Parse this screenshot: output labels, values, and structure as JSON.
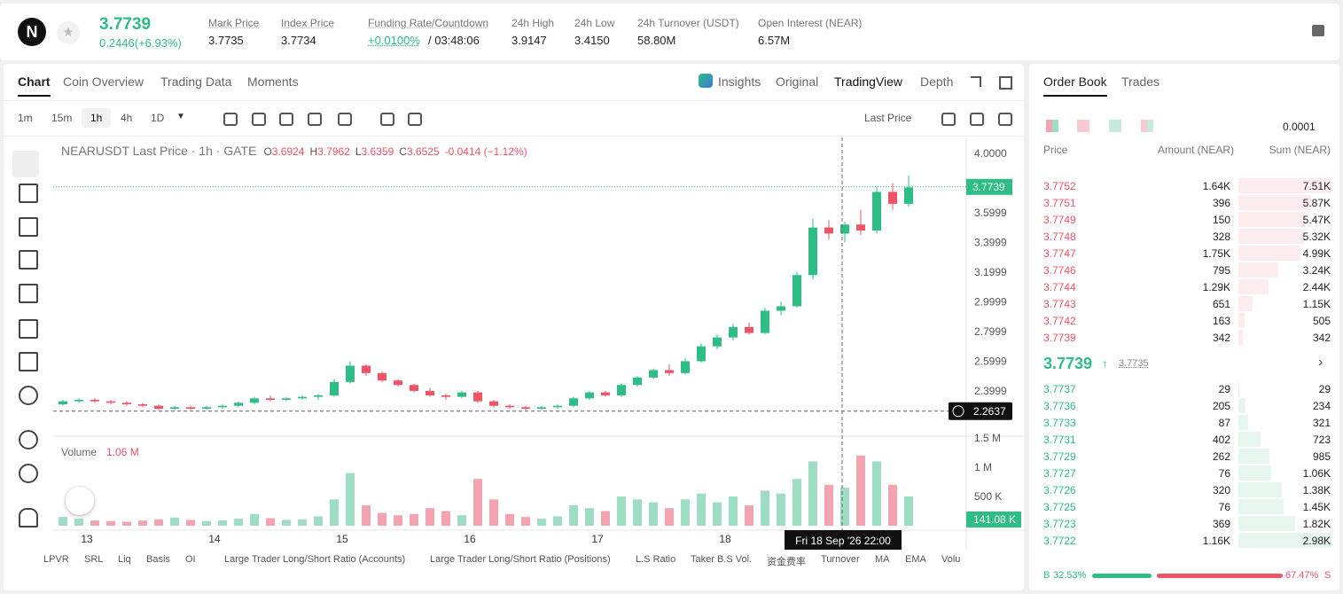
{
  "header": {
    "symbol_price": "3.7739",
    "change": "0.2446(+6.93%)",
    "stats": [
      {
        "label": "Mark Price",
        "value": "3.7735"
      },
      {
        "label": "Index Price",
        "value": "3.7734"
      },
      {
        "label": "Funding Rate/Countdown",
        "value": "+0.0100%",
        "extra": "/ 03:48:06"
      },
      {
        "label": "24h High",
        "value": "3.9147"
      },
      {
        "label": "24h Low",
        "value": "3.4150"
      },
      {
        "label": "24h Turnover (USDT)",
        "value": "58.80M"
      },
      {
        "label": "Open Interest (NEAR)",
        "value": "6.57M"
      }
    ]
  },
  "tabs": [
    "Chart",
    "Coin Overview",
    "Trading Data",
    "Moments"
  ],
  "view_tabs": [
    "Insights",
    "Original",
    "TradingView",
    "Depth"
  ],
  "intervals": [
    "1m",
    "15m",
    "1h",
    "4h",
    "1D"
  ],
  "price_type": "Last Price",
  "chart": {
    "type": "candlestick",
    "legend": {
      "title": "NEARUSDT Last Price · 1h · GATE",
      "o": "O",
      "o_value": "3.6924",
      "h": "H",
      "h_value": "3.7962",
      "l": "L",
      "l_value": "3.6359",
      "c": "C",
      "c_value": "3.6525",
      "change": "-0.0414 (−1.12%)"
    },
    "volume_label": "Volume",
    "volume_value": "1.06 M",
    "ylim": [
      2.107,
      4.107
    ],
    "yticks": [
      {
        "value": 4,
        "label": "4.0000"
      },
      3.5999,
      3.3999,
      3.1999,
      2.9999,
      2.7999,
      2.5999,
      2.3999
    ],
    "vlim": [
      0,
      1560
    ],
    "vticks": [
      {
        "value": 500,
        "label": "500 K"
      },
      {
        "value": 1000,
        "label": "1 M"
      },
      {
        "value": 1500,
        "label": "1.5 M"
      }
    ],
    "xticks": [
      {
        "value": 2,
        "label": "13"
      },
      {
        "value": 10,
        "label": "14"
      },
      {
        "value": 18,
        "label": "15"
      },
      {
        "value": 26,
        "label": "16"
      },
      {
        "value": 34,
        "label": "17"
      },
      {
        "value": 42,
        "label": "18"
      }
    ],
    "last_price": {
      "value": 3.7739,
      "label": "3.7739"
    },
    "last_volume": "141.08 K",
    "crosshair_price": {
      "value": 2.2637,
      "label": "2.2637"
    },
    "crosshair_time": "Fri 18 Sep '26   22:00",
    "up_color": "#2ebd85",
    "down_color": "#ef5366",
    "vol_up_color": "#9edcc3",
    "vol_down_color": "#f2a5b0",
    "candles": [
      [
        2.31,
        2.34,
        2.3,
        2.33,
        150
      ],
      [
        2.33,
        2.35,
        2.32,
        2.34,
        120
      ],
      [
        2.34,
        2.35,
        2.32,
        2.33,
        90
      ],
      [
        2.33,
        2.34,
        2.31,
        2.32,
        80
      ],
      [
        2.32,
        2.33,
        2.3,
        2.31,
        70
      ],
      [
        2.31,
        2.32,
        2.29,
        2.3,
        90
      ],
      [
        2.3,
        2.31,
        2.27,
        2.28,
        110
      ],
      [
        2.28,
        2.3,
        2.27,
        2.29,
        140
      ],
      [
        2.29,
        2.3,
        2.27,
        2.28,
        100
      ],
      [
        2.28,
        2.3,
        2.27,
        2.29,
        80
      ],
      [
        2.29,
        2.31,
        2.28,
        2.3,
        90
      ],
      [
        2.3,
        2.33,
        2.29,
        2.32,
        120
      ],
      [
        2.32,
        2.36,
        2.31,
        2.35,
        200
      ],
      [
        2.35,
        2.37,
        2.33,
        2.34,
        130
      ],
      [
        2.34,
        2.36,
        2.33,
        2.35,
        100
      ],
      [
        2.35,
        2.37,
        2.34,
        2.36,
        110
      ],
      [
        2.36,
        2.38,
        2.34,
        2.37,
        160
      ],
      [
        2.37,
        2.48,
        2.36,
        2.46,
        450
      ],
      [
        2.46,
        2.6,
        2.45,
        2.57,
        900
      ],
      [
        2.57,
        2.58,
        2.5,
        2.52,
        350
      ],
      [
        2.52,
        2.53,
        2.46,
        2.47,
        220
      ],
      [
        2.47,
        2.48,
        2.43,
        2.44,
        180
      ],
      [
        2.44,
        2.45,
        2.39,
        2.4,
        200
      ],
      [
        2.4,
        2.42,
        2.36,
        2.37,
        300
      ],
      [
        2.37,
        2.38,
        2.34,
        2.36,
        250
      ],
      [
        2.36,
        2.4,
        2.35,
        2.39,
        180
      ],
      [
        2.39,
        2.4,
        2.32,
        2.33,
        800
      ],
      [
        2.33,
        2.34,
        2.29,
        2.3,
        450
      ],
      [
        2.3,
        2.31,
        2.28,
        2.29,
        200
      ],
      [
        2.29,
        2.3,
        2.27,
        2.28,
        150
      ],
      [
        2.28,
        2.3,
        2.27,
        2.29,
        120
      ],
      [
        2.29,
        2.31,
        2.28,
        2.3,
        160
      ],
      [
        2.3,
        2.36,
        2.29,
        2.35,
        350
      ],
      [
        2.35,
        2.4,
        2.34,
        2.39,
        300
      ],
      [
        2.39,
        2.4,
        2.36,
        2.37,
        250
      ],
      [
        2.37,
        2.45,
        2.36,
        2.44,
        500
      ],
      [
        2.44,
        2.5,
        2.43,
        2.49,
        450
      ],
      [
        2.49,
        2.55,
        2.48,
        2.54,
        400
      ],
      [
        2.54,
        2.58,
        2.5,
        2.52,
        300
      ],
      [
        2.52,
        2.62,
        2.51,
        2.6,
        450
      ],
      [
        2.6,
        2.72,
        2.59,
        2.7,
        550
      ],
      [
        2.7,
        2.78,
        2.68,
        2.76,
        400
      ],
      [
        2.76,
        2.85,
        2.74,
        2.83,
        500
      ],
      [
        2.83,
        2.86,
        2.78,
        2.79,
        350
      ],
      [
        2.79,
        2.96,
        2.78,
        2.94,
        600
      ],
      [
        2.94,
        3.0,
        2.91,
        2.97,
        550
      ],
      [
        2.97,
        3.2,
        2.96,
        3.18,
        800
      ],
      [
        3.18,
        3.56,
        3.15,
        3.5,
        1100
      ],
      [
        3.5,
        3.55,
        3.42,
        3.46,
        700
      ],
      [
        3.46,
        3.54,
        3.4,
        3.52,
        650
      ],
      [
        3.52,
        3.62,
        3.45,
        3.48,
        1200
      ],
      [
        3.48,
        3.78,
        3.46,
        3.74,
        1100
      ],
      [
        3.74,
        3.8,
        3.62,
        3.66,
        700
      ],
      [
        3.66,
        3.85,
        3.64,
        3.77,
        500
      ]
    ]
  },
  "indicators": [
    "LPVR",
    "SRL",
    "Liq",
    "Basis",
    "OI",
    "Large Trader Long/Short Ratio (Accounts)",
    "Large Trader Long/Short Ratio (Positions)",
    "L.S Ratio",
    "Taker B.S Vol.",
    "资金费率",
    "Turnover",
    "MA",
    "EMA",
    "Volu"
  ],
  "order_book": {
    "tabs": [
      "Order Book",
      "Trades"
    ],
    "precision": "0.0001",
    "columns": [
      "Price",
      "Amount (NEAR)",
      "Sum (NEAR)"
    ],
    "asks": [
      {
        "price": "3.7752",
        "amount": "1.64K",
        "sum": {
          "value": 7510,
          "label": "7.51K"
        }
      },
      {
        "price": "3.7751",
        "amount": "396",
        "sum": {
          "value": 5870,
          "label": "5.87K"
        }
      },
      {
        "price": "3.7749",
        "amount": "150",
        "sum": {
          "value": 5470,
          "label": "5.47K"
        }
      },
      {
        "price": "3.7748",
        "amount": "328",
        "sum": {
          "value": 5320,
          "label": "5.32K"
        }
      },
      {
        "price": "3.7747",
        "amount": "1.75K",
        "sum": {
          "value": 4990,
          "label": "4.99K"
        }
      },
      {
        "price": "3.7746",
        "amount": "795",
        "sum": {
          "value": 3240,
          "label": "3.24K"
        }
      },
      {
        "price": "3.7744",
        "amount": "1.29K",
        "sum": {
          "value": 2440,
          "label": "2.44K"
        }
      },
      {
        "price": "3.7743",
        "amount": "651",
        "sum": {
          "value": 1150,
          "label": "1.15K"
        }
      },
      {
        "price": "3.7742",
        "amount": "163",
        "sum": 505
      },
      {
        "price": "3.7739",
        "amount": "342",
        "sum": 342
      }
    ],
    "last": "3.7739",
    "mark": "3.7735",
    "bids": [
      {
        "price": "3.7737",
        "amount": "29",
        "sum": 29
      },
      {
        "price": "3.7736",
        "amount": "205",
        "sum": 234
      },
      {
        "price": "3.7733",
        "amount": "87",
        "sum": 321
      },
      {
        "price": "3.7731",
        "amount": "402",
        "sum": 723
      },
      {
        "price": "3.7729",
        "amount": "262",
        "sum": 985
      },
      {
        "price": "3.7727",
        "amount": "76",
        "sum": {
          "value": 1060,
          "label": "1.06K"
        }
      },
      {
        "price": "3.7726",
        "amount": "320",
        "sum": {
          "value": 1380,
          "label": "1.38K"
        }
      },
      {
        "price": "3.7725",
        "amount": "76",
        "sum": {
          "value": 1450,
          "label": "1.45K"
        }
      },
      {
        "price": "3.7723",
        "amount": "369",
        "sum": {
          "value": 1820,
          "label": "1.82K"
        }
      },
      {
        "price": "3.7722",
        "amount": "1.16K",
        "sum": {
          "value": 2980,
          "label": "2.98K"
        }
      }
    ],
    "ratio": {
      "buy_label": "B",
      "buy": {
        "value": 32.53,
        "label": "32.53%"
      },
      "sell": {
        "value": 67.47,
        "label": "67.47%"
      },
      "sell_label": "S"
    }
  }
}
